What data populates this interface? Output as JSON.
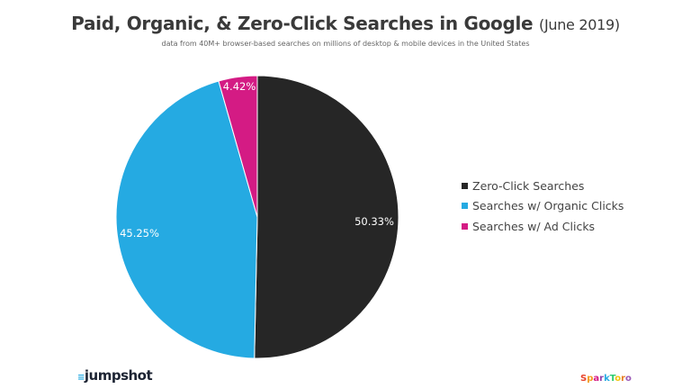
{
  "chart_data": {
    "type": "pie",
    "title": "Paid, Organic, & Zero-Click Searches in Google",
    "title_suffix": "(June 2019)",
    "subtitle": "data from 40M+ browser-based searches on millions of desktop & mobile devices in the United States",
    "legend_position": "right",
    "slices": [
      {
        "name": "Zero-Click Searches",
        "value": 50.33,
        "label": "50.33%",
        "color": "#262626"
      },
      {
        "name": "Searches w/ Organic Clicks",
        "value": 45.25,
        "label": "45.25%",
        "color": "#25aae2"
      },
      {
        "name": "Searches w/ Ad Clicks",
        "value": 4.42,
        "label": "4.42%",
        "color": "#d41b84"
      }
    ]
  },
  "logos": {
    "left": "jumpshot",
    "right": "SparkToro"
  }
}
